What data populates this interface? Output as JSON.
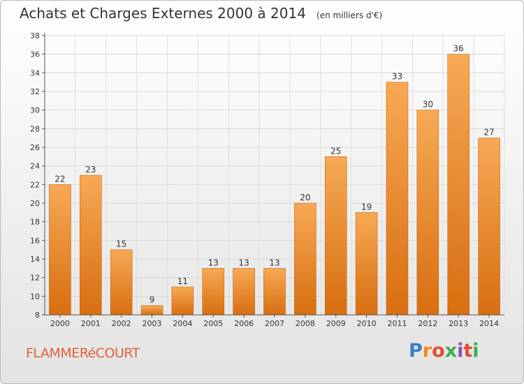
{
  "header": {
    "title": "Achats et Charges Externes 2000 à 2014",
    "unit": "(en milliers d'€)"
  },
  "footer": {
    "commune": "FLAMMERéCOURT",
    "logo": {
      "letters": [
        "P",
        "r",
        "o",
        "x",
        "i",
        "t",
        "i"
      ],
      "colors": [
        "#3a7fc4",
        "#f08a1c",
        "#e44c3a",
        "#3cae4c",
        "#8a52b5",
        "#e44c3a",
        "#3cae4c"
      ]
    }
  },
  "chart_data": {
    "type": "bar",
    "title": "Achats et Charges Externes 2000 à 2014",
    "xlabel": "",
    "ylabel": "",
    "categories": [
      "2000",
      "2001",
      "2002",
      "2003",
      "2004",
      "2005",
      "2006",
      "2007",
      "2008",
      "2009",
      "2010",
      "2011",
      "2012",
      "2013",
      "2014"
    ],
    "values": [
      22,
      23,
      15,
      9,
      11,
      13,
      13,
      13,
      20,
      25,
      19,
      33,
      30,
      36,
      27
    ],
    "ylim": [
      8,
      38
    ],
    "yticks": [
      8,
      10,
      12,
      14,
      16,
      18,
      20,
      22,
      24,
      26,
      28,
      30,
      32,
      34,
      36,
      38
    ],
    "grid": true,
    "bar_color_top": "#f7a955",
    "bar_color_bottom": "#d86e10"
  }
}
